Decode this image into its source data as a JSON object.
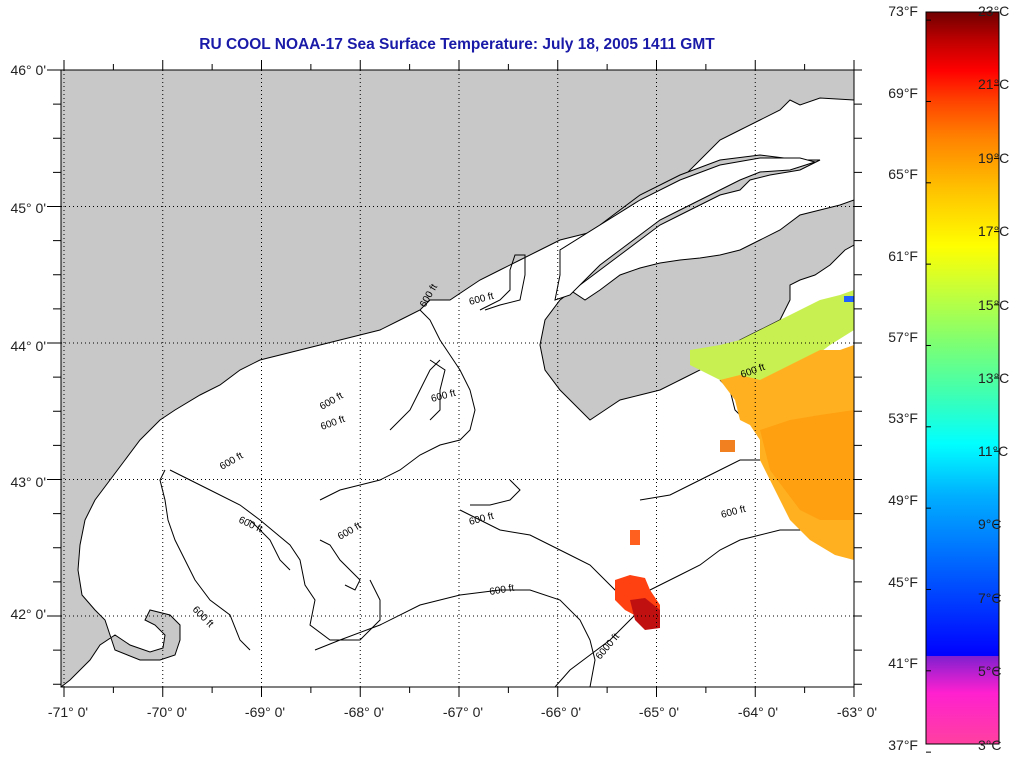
{
  "title": "RU COOL  NOAA-17  Sea Surface Temperature:  July 18, 2005 1411 GMT",
  "map": {
    "lon_range": [
      -71,
      -63
    ],
    "lat_range": [
      41.5,
      46
    ],
    "lat_labels": [
      {
        "value": 46,
        "text": "46° 0'"
      },
      {
        "value": 45,
        "text": "45° 0'"
      },
      {
        "value": 44,
        "text": "44° 0'"
      },
      {
        "value": 43,
        "text": "43° 0'"
      },
      {
        "value": 42,
        "text": "42° 0'"
      }
    ],
    "lon_labels": [
      {
        "value": -71,
        "text": "-71° 0'"
      },
      {
        "value": -70,
        "text": "-70° 0'"
      },
      {
        "value": -69,
        "text": "-69° 0'"
      },
      {
        "value": -68,
        "text": "-68° 0'"
      },
      {
        "value": -67,
        "text": "-67° 0'"
      },
      {
        "value": -66,
        "text": "-66° 0'"
      },
      {
        "value": -65,
        "text": "-65° 0'"
      },
      {
        "value": -64,
        "text": "-64° 0'"
      },
      {
        "value": -63,
        "text": "-63° 0'"
      }
    ],
    "contour_labels": [
      "600 ft",
      "600 ft",
      "600 ft",
      "600 ft",
      "600 ft",
      "600 ft",
      "600 ft",
      "600 ft",
      "600 ft",
      "600 ft",
      "600 ft",
      "600 ft",
      "600 ft",
      "6000 ft"
    ],
    "land_color": "#c8c8c8",
    "water_color": "#ffffff"
  },
  "colorbar": {
    "fahrenheit": [
      {
        "value": 73,
        "text": "73°F"
      },
      {
        "value": 69,
        "text": "69°F"
      },
      {
        "value": 65,
        "text": "65°F"
      },
      {
        "value": 61,
        "text": "61°F"
      },
      {
        "value": 57,
        "text": "57°F"
      },
      {
        "value": 53,
        "text": "53°F"
      },
      {
        "value": 49,
        "text": "49°F"
      },
      {
        "value": 45,
        "text": "45°F"
      },
      {
        "value": 41,
        "text": "41°F"
      },
      {
        "value": 37,
        "text": "37°F"
      }
    ],
    "celsius": [
      {
        "value": 23,
        "text": "23°C"
      },
      {
        "value": 21,
        "text": "21°C"
      },
      {
        "value": 19,
        "text": "19°C"
      },
      {
        "value": 17,
        "text": "17°C"
      },
      {
        "value": 15,
        "text": "15°C"
      },
      {
        "value": 13,
        "text": "13°C"
      },
      {
        "value": 11,
        "text": "11°C"
      },
      {
        "value": 9,
        "text": "9°C"
      },
      {
        "value": 7,
        "text": "7°C"
      },
      {
        "value": 5,
        "text": "5°C"
      },
      {
        "value": 3,
        "text": "3°C"
      }
    ],
    "range_c": [
      3,
      23
    ],
    "stops": [
      "#ff40a0",
      "#ff20d0",
      "#8020d0",
      "#4020b0",
      "#0000ff",
      "#0060ff",
      "#00b0ff",
      "#00ffff",
      "#40ffb0",
      "#80ff70",
      "#d0ff30",
      "#ffff00",
      "#ffc000",
      "#ff8000",
      "#ff4000",
      "#ff0000",
      "#c00000",
      "#700000"
    ]
  }
}
